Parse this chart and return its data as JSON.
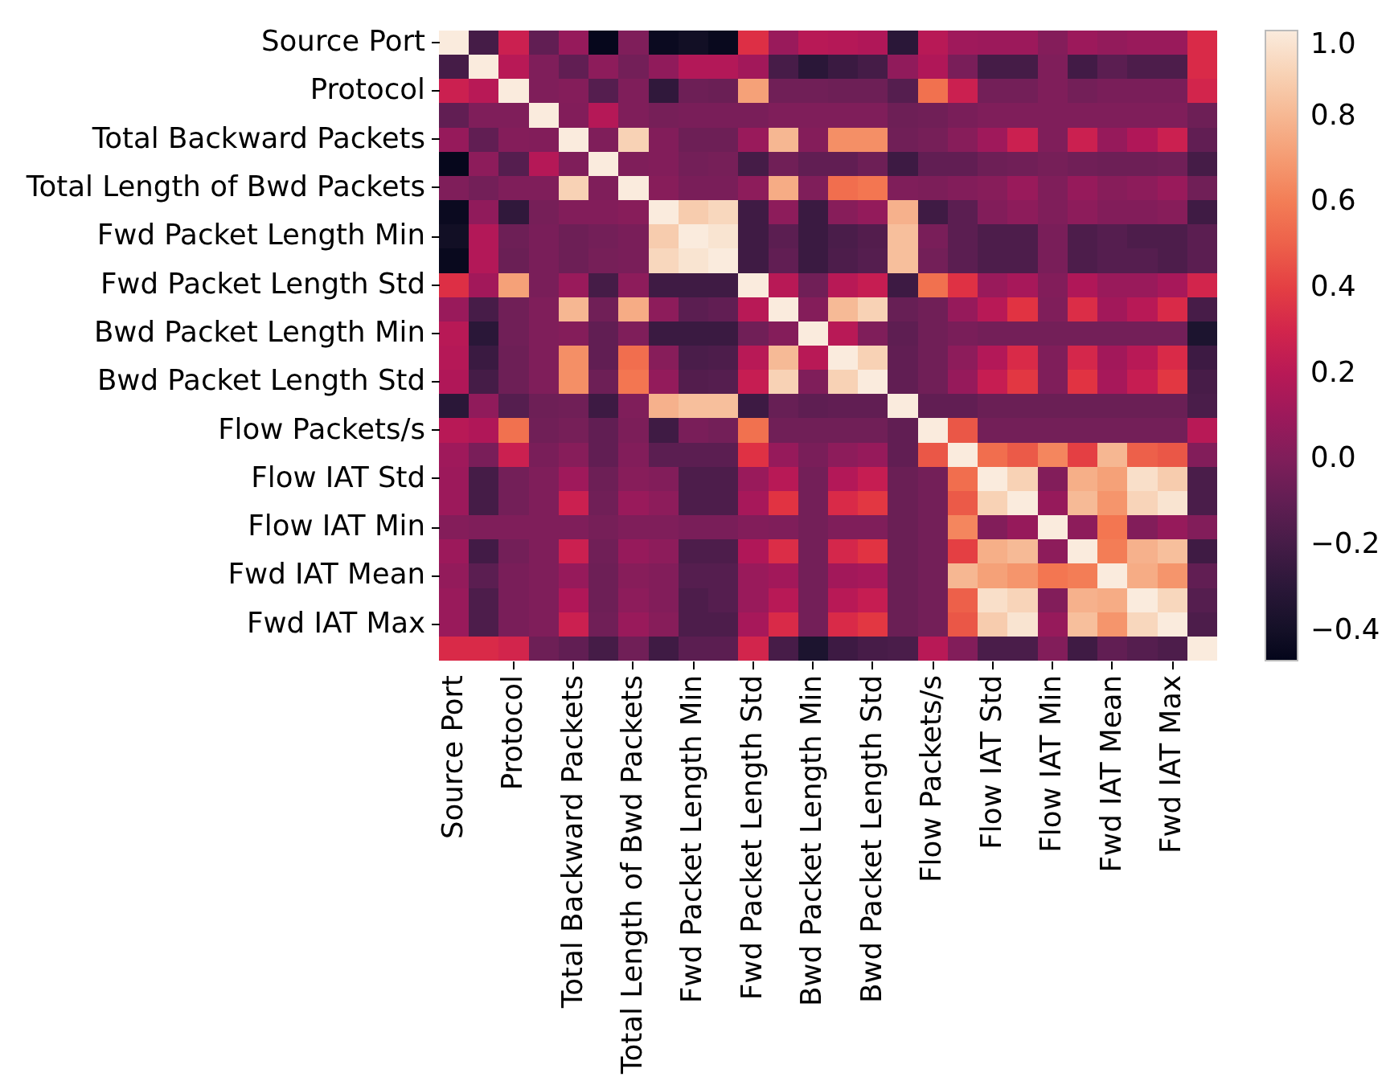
{
  "chart_data": {
    "type": "heatmap",
    "categories": [
      "Source Port",
      null,
      "Protocol",
      null,
      "Total Backward Packets",
      null,
      "Total Length of Bwd Packets",
      null,
      "Fwd Packet Length Min",
      null,
      "Fwd Packet Length Std",
      null,
      "Bwd Packet Length Min",
      null,
      "Bwd Packet Length Std",
      null,
      "Flow Packets/s",
      null,
      "Flow IAT Std",
      null,
      "Flow IAT Min",
      null,
      "Fwd IAT Mean",
      null,
      "Fwd IAT Max",
      null
    ],
    "y_categories": [
      "Source Port",
      null,
      "Protocol",
      null,
      "Total Backward Packets",
      null,
      "Total Length of Bwd Packets",
      null,
      "Fwd Packet Length Min",
      null,
      "Fwd Packet Length Std",
      null,
      "Bwd Packet Length Min",
      null,
      "Bwd Packet Length Std",
      null,
      "Flow Packets/s",
      null,
      "Flow IAT Std",
      null,
      "Flow IAT Min",
      null,
      "Fwd IAT Mean",
      null,
      "Fwd IAT Max",
      null
    ],
    "cells": [
      [
        1,
        -0.2,
        0.27,
        -0.1,
        0.08,
        -0.46,
        0.0,
        -0.44,
        -0.41,
        -0.45,
        0.35,
        0.09,
        0.2,
        0.19,
        0.17,
        -0.3,
        0.2,
        0.11,
        0.1,
        0.1,
        0.02,
        0.1,
        0.07,
        0.09,
        0.09,
        0.33
      ],
      [
        -0.2,
        1,
        0.2,
        0.0,
        -0.1,
        0.05,
        -0.04,
        0.06,
        0.18,
        0.18,
        0.12,
        -0.19,
        -0.3,
        -0.24,
        -0.2,
        0.06,
        0.17,
        -0.02,
        -0.2,
        -0.2,
        0.0,
        -0.21,
        -0.12,
        -0.17,
        -0.17,
        0.33
      ],
      [
        0.27,
        0.2,
        1,
        0.0,
        0.02,
        -0.14,
        0.0,
        -0.28,
        -0.06,
        -0.07,
        0.72,
        -0.05,
        -0.05,
        -0.06,
        -0.06,
        -0.14,
        0.56,
        0.27,
        -0.04,
        -0.04,
        0.0,
        -0.04,
        -0.02,
        -0.02,
        -0.02,
        0.3
      ],
      [
        -0.1,
        0.0,
        0.0,
        1,
        0.01,
        0.19,
        0.0,
        -0.03,
        -0.02,
        -0.02,
        -0.02,
        0.0,
        0.0,
        0.0,
        0.0,
        -0.06,
        -0.05,
        -0.02,
        0.0,
        0.0,
        0.0,
        0.0,
        0.0,
        0.0,
        0.0,
        -0.06
      ],
      [
        0.08,
        -0.1,
        0.02,
        0.01,
        1,
        0.0,
        0.9,
        0.01,
        -0.06,
        -0.06,
        0.09,
        0.8,
        0.02,
        0.66,
        0.66,
        -0.05,
        -0.03,
        0.03,
        0.11,
        0.27,
        0.0,
        0.27,
        0.08,
        0.17,
        0.27,
        -0.1
      ],
      [
        -0.46,
        0.05,
        -0.14,
        0.19,
        0.0,
        1,
        0.0,
        0.01,
        -0.04,
        -0.03,
        -0.2,
        -0.05,
        -0.1,
        -0.1,
        -0.06,
        -0.23,
        -0.1,
        -0.1,
        -0.06,
        -0.05,
        -0.03,
        -0.05,
        -0.06,
        -0.06,
        -0.05,
        -0.2
      ],
      [
        0.0,
        -0.04,
        0.0,
        0.0,
        0.9,
        0.0,
        1,
        0.03,
        -0.02,
        -0.02,
        0.05,
        0.76,
        0.0,
        0.55,
        0.58,
        0.0,
        -0.01,
        0.01,
        0.03,
        0.09,
        0.0,
        0.08,
        0.03,
        0.05,
        0.09,
        -0.05
      ],
      [
        -0.44,
        0.06,
        -0.28,
        -0.03,
        0.01,
        0.01,
        0.03,
        1,
        0.88,
        0.92,
        -0.22,
        0.05,
        -0.24,
        0.03,
        0.07,
        0.78,
        -0.22,
        -0.12,
        0.01,
        0.05,
        0.0,
        0.05,
        0.01,
        0.01,
        0.03,
        -0.22
      ],
      [
        -0.41,
        0.18,
        -0.06,
        -0.02,
        -0.06,
        -0.04,
        -0.02,
        0.88,
        1,
        0.97,
        -0.22,
        -0.12,
        -0.24,
        -0.18,
        -0.15,
        0.83,
        -0.02,
        -0.12,
        -0.17,
        -0.17,
        -0.02,
        -0.17,
        -0.14,
        -0.17,
        -0.17,
        -0.12
      ],
      [
        -0.45,
        0.18,
        -0.07,
        -0.02,
        -0.06,
        -0.03,
        -0.02,
        0.92,
        0.97,
        1,
        -0.22,
        -0.1,
        -0.24,
        -0.17,
        -0.14,
        0.83,
        -0.04,
        -0.12,
        -0.17,
        -0.17,
        -0.02,
        -0.17,
        -0.14,
        -0.14,
        -0.17,
        -0.12
      ],
      [
        0.35,
        0.12,
        0.72,
        -0.02,
        0.09,
        -0.2,
        0.05,
        -0.22,
        -0.22,
        -0.22,
        1,
        0.2,
        -0.05,
        0.2,
        0.25,
        -0.23,
        0.56,
        0.36,
        0.09,
        0.14,
        0.01,
        0.17,
        0.09,
        0.09,
        0.14,
        0.3
      ],
      [
        0.09,
        -0.19,
        -0.05,
        0.0,
        0.8,
        -0.05,
        0.76,
        0.05,
        -0.12,
        -0.1,
        0.2,
        1,
        0.02,
        0.81,
        0.9,
        -0.08,
        -0.05,
        0.08,
        0.2,
        0.37,
        0.0,
        0.34,
        0.12,
        0.2,
        0.33,
        -0.19
      ],
      [
        0.2,
        -0.3,
        -0.05,
        0.0,
        0.02,
        -0.1,
        0.0,
        -0.24,
        -0.24,
        -0.24,
        -0.05,
        0.02,
        1,
        0.2,
        0.0,
        -0.11,
        -0.05,
        -0.02,
        -0.04,
        -0.04,
        -0.04,
        -0.04,
        -0.04,
        -0.04,
        -0.04,
        -0.36
      ],
      [
        0.19,
        -0.24,
        -0.06,
        0.0,
        0.66,
        -0.1,
        0.55,
        0.03,
        -0.18,
        -0.17,
        0.2,
        0.81,
        0.2,
        1,
        0.9,
        -0.1,
        -0.05,
        0.05,
        0.18,
        0.33,
        0.0,
        0.31,
        0.12,
        0.2,
        0.33,
        -0.23
      ],
      [
        0.17,
        -0.2,
        -0.06,
        0.0,
        0.66,
        -0.06,
        0.58,
        0.07,
        -0.15,
        -0.14,
        0.25,
        0.9,
        0.0,
        0.9,
        1,
        -0.1,
        -0.05,
        0.08,
        0.25,
        0.38,
        0.0,
        0.37,
        0.14,
        0.25,
        0.38,
        -0.19
      ],
      [
        -0.3,
        0.06,
        -0.14,
        -0.06,
        -0.05,
        -0.23,
        0.0,
        0.78,
        0.83,
        0.83,
        -0.23,
        -0.08,
        -0.11,
        -0.1,
        -0.1,
        1,
        -0.1,
        -0.1,
        -0.07,
        -0.07,
        -0.07,
        -0.07,
        -0.07,
        -0.07,
        -0.07,
        -0.18
      ],
      [
        0.2,
        0.17,
        0.56,
        -0.05,
        -0.03,
        -0.1,
        -0.01,
        -0.22,
        -0.02,
        -0.04,
        0.56,
        -0.05,
        -0.05,
        -0.05,
        -0.05,
        -0.1,
        1,
        0.47,
        -0.04,
        -0.04,
        -0.04,
        -0.04,
        -0.04,
        -0.04,
        -0.04,
        0.2
      ],
      [
        0.11,
        -0.02,
        0.27,
        -0.02,
        0.03,
        -0.1,
        0.01,
        -0.12,
        -0.12,
        -0.12,
        0.36,
        0.08,
        -0.02,
        0.05,
        0.08,
        -0.1,
        0.47,
        1,
        0.55,
        0.48,
        0.63,
        0.4,
        0.8,
        0.5,
        0.47,
        0.01
      ],
      [
        0.1,
        -0.2,
        -0.04,
        0.0,
        0.11,
        -0.06,
        0.03,
        0.01,
        -0.17,
        -0.17,
        0.09,
        0.2,
        -0.04,
        0.18,
        0.25,
        -0.07,
        -0.04,
        0.55,
        1,
        0.9,
        0.01,
        0.77,
        0.72,
        0.95,
        0.88,
        -0.18
      ],
      [
        0.1,
        -0.2,
        -0.04,
        0.0,
        0.27,
        -0.05,
        0.09,
        0.05,
        -0.17,
        -0.17,
        0.14,
        0.37,
        -0.04,
        0.33,
        0.38,
        -0.07,
        -0.04,
        0.48,
        0.9,
        1,
        0.08,
        0.81,
        0.68,
        0.91,
        0.97,
        -0.18
      ],
      [
        0.02,
        0.0,
        0.0,
        0.0,
        0.0,
        -0.03,
        0.0,
        0.0,
        -0.02,
        -0.02,
        0.01,
        0.0,
        -0.04,
        0.0,
        0.0,
        -0.07,
        -0.04,
        0.63,
        0.01,
        0.08,
        1,
        0.05,
        0.58,
        0.01,
        0.08,
        0.01
      ],
      [
        0.1,
        -0.21,
        -0.04,
        0.0,
        0.27,
        -0.05,
        0.08,
        0.05,
        -0.17,
        -0.17,
        0.17,
        0.34,
        -0.04,
        0.31,
        0.37,
        -0.07,
        -0.04,
        0.4,
        0.77,
        0.81,
        0.05,
        1,
        0.6,
        0.78,
        0.83,
        -0.22
      ],
      [
        0.07,
        -0.12,
        -0.02,
        0.0,
        0.08,
        -0.06,
        0.03,
        0.01,
        -0.14,
        -0.14,
        0.09,
        0.12,
        -0.04,
        0.12,
        0.14,
        -0.07,
        -0.04,
        0.8,
        0.72,
        0.68,
        0.58,
        0.6,
        1,
        0.76,
        0.68,
        -0.1
      ],
      [
        0.09,
        -0.17,
        -0.02,
        0.0,
        0.17,
        -0.06,
        0.05,
        0.01,
        -0.17,
        -0.14,
        0.09,
        0.2,
        -0.04,
        0.2,
        0.25,
        -0.07,
        -0.04,
        0.5,
        0.95,
        0.91,
        0.01,
        0.78,
        0.76,
        1,
        0.92,
        -0.14
      ],
      [
        0.09,
        -0.17,
        -0.02,
        0.0,
        0.27,
        -0.05,
        0.09,
        0.03,
        -0.17,
        -0.17,
        0.14,
        0.33,
        -0.04,
        0.33,
        0.38,
        -0.07,
        -0.04,
        0.47,
        0.88,
        0.97,
        0.08,
        0.83,
        0.68,
        0.92,
        1,
        -0.17
      ],
      [
        0.33,
        0.33,
        0.3,
        -0.06,
        -0.1,
        -0.2,
        -0.05,
        -0.22,
        -0.12,
        -0.12,
        0.3,
        -0.19,
        -0.36,
        -0.23,
        -0.19,
        -0.18,
        0.2,
        0.01,
        -0.18,
        -0.18,
        0.01,
        -0.22,
        -0.1,
        -0.14,
        -0.17,
        1
      ]
    ],
    "clim": [
      -0.47,
      1.0
    ],
    "cticks": [
      {
        "value": -0.4,
        "label": "−0.4"
      },
      {
        "value": -0.2,
        "label": "−0.2"
      },
      {
        "value": 0,
        "label": "0.0"
      },
      {
        "value": 0.2,
        "label": "0.2"
      },
      {
        "value": 0.4,
        "label": "0.4"
      },
      {
        "value": 0.6,
        "label": "0.6"
      },
      {
        "value": 0.8,
        "label": "0.8"
      },
      {
        "value": 1,
        "label": "1.0"
      }
    ]
  }
}
